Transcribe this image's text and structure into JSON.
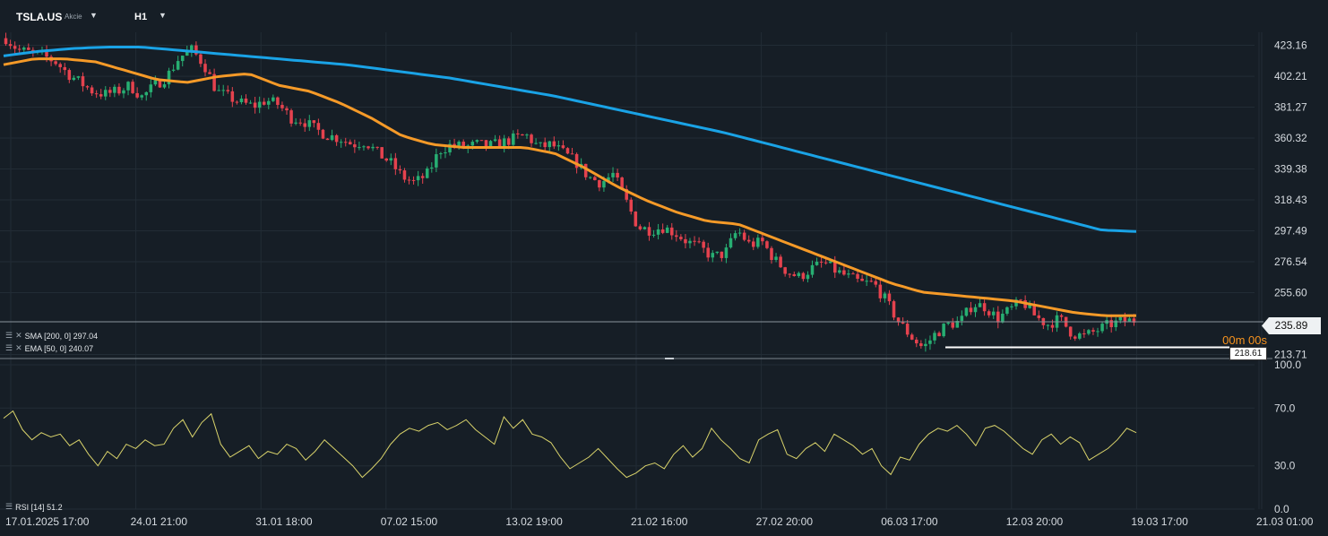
{
  "header": {
    "symbol": "TSLA.US",
    "symbol_type": "Akcie",
    "timeframe": "H1"
  },
  "legends": {
    "sma": "SMA [200, 0] 297.04",
    "ema": "EMA [50, 0] 240.07",
    "rsi": "RSI [14] 51.2"
  },
  "timer": "00m 00s",
  "current_price_label": "235.89",
  "low_marker_label": "218.61",
  "colors": {
    "background": "#161e26",
    "up_candle": "#27ae72",
    "down_candle": "#e5424e",
    "sma": "#1aa3e6",
    "ema": "#f59a28",
    "rsi": "#d9d36b"
  },
  "chart_data": [
    {
      "type": "candlestick",
      "timeframe": "H1",
      "x_tick_labels": [
        "17.01.2025 17:00",
        "24.01 21:00",
        "31.01 18:00",
        "07.02 15:00",
        "13.02 19:00",
        "21.02 16:00",
        "27.02 20:00",
        "06.03 17:00",
        "12.03 20:00",
        "19.03 17:00",
        "21.03 01:00"
      ],
      "y_tick_labels": [
        "423.16",
        "402.21",
        "381.27",
        "360.32",
        "339.38",
        "318.43",
        "297.49",
        "276.54",
        "255.60",
        "213.71"
      ],
      "ylim": [
        211,
        432
      ],
      "close_path": [
        428,
        420,
        418,
        416,
        412,
        404,
        398,
        392,
        390,
        392,
        396,
        388,
        396,
        402,
        415,
        420,
        410,
        392,
        388,
        384,
        382,
        386,
        383,
        374,
        372,
        366,
        362,
        360,
        356,
        358,
        350,
        344,
        334,
        330,
        336,
        352,
        356,
        354,
        356,
        355,
        357,
        360,
        362,
        354,
        356,
        350,
        344,
        334,
        330,
        336,
        318,
        300,
        298,
        300,
        296,
        290,
        286,
        280,
        282,
        298,
        288,
        290,
        278,
        270,
        266,
        272,
        276,
        270,
        266,
        262,
        262,
        250,
        236,
        226,
        218,
        228,
        234,
        236,
        248,
        246,
        238,
        244,
        250,
        240,
        234,
        238,
        228,
        226,
        230,
        234,
        236,
        237
      ],
      "series": [
        {
          "name": "SMA [200, 0]",
          "last_value": 297.04,
          "path": [
            416,
            419,
            421,
            422,
            422,
            420,
            418,
            416,
            414,
            412,
            410,
            407,
            404,
            401,
            397,
            393,
            389,
            384,
            379,
            374,
            369,
            364,
            358,
            352,
            346,
            340,
            334,
            328,
            322,
            316,
            310,
            304,
            298,
            297.04
          ]
        },
        {
          "name": "EMA [50, 0]",
          "last_value": 240.07,
          "path": [
            410,
            414,
            414,
            412,
            406,
            400,
            398,
            402,
            404,
            396,
            392,
            384,
            374,
            362,
            356,
            354,
            354,
            354,
            350,
            340,
            328,
            318,
            310,
            304,
            302,
            294,
            286,
            278,
            270,
            262,
            256,
            254,
            252,
            250,
            246,
            242,
            240,
            240.07
          ]
        }
      ],
      "current_price": 235.89,
      "marked_low": 218.61
    },
    {
      "type": "line",
      "series": [
        {
          "name": "RSI [14]",
          "last_value": 51.2,
          "values": [
            63,
            68,
            55,
            48,
            53,
            50,
            52,
            44,
            48,
            38,
            30,
            40,
            35,
            45,
            42,
            48,
            44,
            45,
            56,
            62,
            50,
            60,
            66,
            45,
            36,
            40,
            44,
            35,
            40,
            38,
            45,
            42,
            34,
            40,
            48,
            42,
            36,
            30,
            22,
            28,
            35,
            45,
            52,
            56,
            54,
            58,
            60,
            55,
            58,
            62,
            55,
            50,
            45,
            64,
            56,
            62,
            52,
            50,
            46,
            36,
            28,
            32,
            36,
            42,
            35,
            28,
            22,
            25,
            30,
            32,
            28,
            38,
            44,
            36,
            42,
            56,
            48,
            42,
            35,
            32,
            48,
            52,
            55,
            38,
            35,
            42,
            46,
            40,
            52,
            48,
            44,
            38,
            42,
            30,
            24,
            36,
            34,
            45,
            52,
            56,
            54,
            58,
            52,
            44,
            56,
            58,
            54,
            48,
            42,
            38,
            48,
            52,
            45,
            50,
            46,
            34,
            38,
            42,
            48,
            56,
            53
          ]
        }
      ],
      "y_tick_labels": [
        "100.0",
        "70.0",
        "30.0",
        "0.0"
      ],
      "ylim": [
        0,
        100
      ]
    }
  ]
}
